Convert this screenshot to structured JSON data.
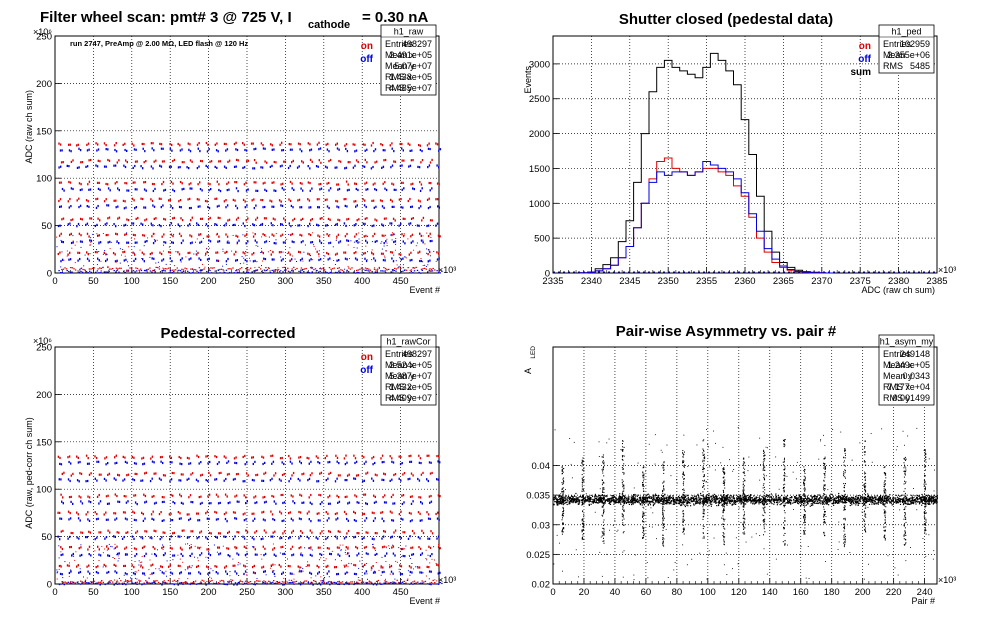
{
  "chart_data": [
    {
      "type": "scatter",
      "title": "Filter wheel scan: pmt#   3 @   725 V, I",
      "title_sub": "cathode",
      "title_suffix": "= 0.30 nA",
      "annotation": "run 2747, PreAmp @ 2.00 MΩ, LED flash @  120 Hz",
      "xlabel": "Event #",
      "ylabel": "ADC (raw ch sum)",
      "x_exponent": "×10³",
      "y_exponent": "×10⁶",
      "xlim": [
        0,
        500
      ],
      "ylim": [
        0,
        250
      ],
      "xticks": [
        0,
        50,
        100,
        150,
        200,
        250,
        300,
        350,
        400,
        450
      ],
      "yticks": [
        0,
        50,
        100,
        150,
        200,
        250
      ],
      "grid": true,
      "legend": [
        {
          "name": "on",
          "color": "#e00000"
        },
        {
          "name": "off",
          "color": "#0000e0"
        }
      ],
      "legend_position": "top-right",
      "stats": {
        "name": "h1_raw",
        "rows": [
          [
            "Entries",
            "498297"
          ],
          [
            "Mean x",
            "2.491e+05"
          ],
          [
            "Mean y",
            "5.07e+07"
          ],
          [
            "RMS x",
            "1.438e+05"
          ],
          [
            "RMS y",
            "4.485e+07"
          ]
        ]
      },
      "bands": [
        {
          "series": "on",
          "y": 137
        },
        {
          "series": "off",
          "y": 131
        },
        {
          "series": "on",
          "y": 119
        },
        {
          "series": "off",
          "y": 113
        },
        {
          "series": "on",
          "y": 96
        },
        {
          "series": "off",
          "y": 89
        },
        {
          "series": "on",
          "y": 78
        },
        {
          "series": "off",
          "y": 71
        },
        {
          "series": "on",
          "y": 58
        },
        {
          "series": "off",
          "y": 52
        },
        {
          "series": "on",
          "y": 41
        },
        {
          "series": "off",
          "y": 34
        },
        {
          "series": "on",
          "y": 22
        },
        {
          "series": "off",
          "y": 15
        },
        {
          "series": "on",
          "y": 5
        },
        {
          "series": "off",
          "y": 2
        }
      ]
    },
    {
      "type": "line",
      "title": "Shutter closed (pedestal data)",
      "xlabel": "ADC (raw ch sum)",
      "ylabel": "Events",
      "x_exponent": "×10³",
      "xlim": [
        2335,
        2385
      ],
      "ylim": [
        0,
        3400
      ],
      "xticks": [
        2335,
        2340,
        2345,
        2350,
        2355,
        2360,
        2365,
        2370,
        2375,
        2380,
        2385
      ],
      "yticks": [
        0,
        500,
        1000,
        1500,
        2000,
        2500,
        3000
      ],
      "grid": true,
      "legend": [
        {
          "name": "on",
          "color": "#e00000"
        },
        {
          "name": "off",
          "color": "#0000e0"
        },
        {
          "name": "sum",
          "color": "#000000"
        }
      ],
      "legend_position": "top-right",
      "stats": {
        "name": "h1_ped",
        "rows": [
          [
            "Entries",
            "102959"
          ],
          [
            "Mean",
            "2.355e+06"
          ],
          [
            "RMS",
            "5485"
          ]
        ]
      },
      "x": [
        2339,
        2340,
        2341,
        2342,
        2343,
        2344,
        2345,
        2346,
        2347,
        2348,
        2349,
        2350,
        2351,
        2352,
        2353,
        2354,
        2355,
        2356,
        2357,
        2358,
        2359,
        2360,
        2361,
        2362,
        2363,
        2364,
        2365,
        2366,
        2367,
        2368,
        2369,
        2370,
        2371
      ],
      "series": [
        {
          "name": "sum",
          "color": "#000000",
          "values": [
            5,
            15,
            60,
            120,
            220,
            450,
            750,
            1300,
            2000,
            2600,
            2950,
            3050,
            2950,
            2900,
            2850,
            2800,
            2950,
            3150,
            3050,
            2900,
            2700,
            2200,
            1700,
            1100,
            600,
            300,
            150,
            80,
            40,
            20,
            10,
            5,
            0
          ]
        },
        {
          "name": "on",
          "color": "#e00000",
          "values": [
            2,
            8,
            30,
            60,
            110,
            220,
            380,
            650,
            1000,
            1350,
            1600,
            1650,
            1500,
            1450,
            1400,
            1450,
            1500,
            1500,
            1450,
            1400,
            1250,
            1100,
            800,
            500,
            300,
            150,
            80,
            40,
            20,
            10,
            5,
            2,
            0
          ]
        },
        {
          "name": "off",
          "color": "#0000e0",
          "values": [
            2,
            8,
            30,
            60,
            110,
            220,
            380,
            650,
            1000,
            1300,
            1450,
            1400,
            1450,
            1450,
            1400,
            1450,
            1600,
            1550,
            1500,
            1450,
            1350,
            1150,
            850,
            600,
            350,
            200,
            100,
            50,
            20,
            10,
            5,
            2,
            0
          ]
        }
      ]
    },
    {
      "type": "scatter",
      "title": "Pedestal-corrected",
      "xlabel": "Event #",
      "ylabel": "ADC (raw, ped-corr ch sum)",
      "x_exponent": "×10³",
      "y_exponent": "×10⁶",
      "xlim": [
        0,
        500
      ],
      "ylim": [
        0,
        250
      ],
      "xticks": [
        0,
        50,
        100,
        150,
        200,
        250,
        300,
        350,
        400,
        450
      ],
      "yticks": [
        0,
        50,
        100,
        150,
        200,
        250
      ],
      "grid": true,
      "legend": [
        {
          "name": "on",
          "color": "#e00000"
        },
        {
          "name": "off",
          "color": "#0000e0"
        }
      ],
      "legend_position": "top-right",
      "stats": {
        "name": "h1_rawCor",
        "rows": [
          [
            "Entries",
            "498297"
          ],
          [
            "Mean x",
            "2.524e+05"
          ],
          [
            "Mean y",
            "5.387e+07"
          ],
          [
            "RMS x",
            "1.432e+05"
          ],
          [
            "RMS y",
            "4.409e+07"
          ]
        ]
      },
      "bands": [
        {
          "series": "on",
          "y": 135
        },
        {
          "series": "off",
          "y": 129
        },
        {
          "series": "on",
          "y": 117
        },
        {
          "series": "off",
          "y": 111
        },
        {
          "series": "on",
          "y": 94
        },
        {
          "series": "off",
          "y": 87
        },
        {
          "series": "on",
          "y": 76
        },
        {
          "series": "off",
          "y": 69
        },
        {
          "series": "on",
          "y": 56
        },
        {
          "series": "off",
          "y": 50
        },
        {
          "series": "on",
          "y": 39
        },
        {
          "series": "off",
          "y": 32
        },
        {
          "series": "on",
          "y": 20
        },
        {
          "series": "off",
          "y": 13
        },
        {
          "series": "on",
          "y": 3
        },
        {
          "series": "off",
          "y": 1
        }
      ]
    },
    {
      "type": "scatter",
      "title": "Pair-wise Asymmetry vs. pair #",
      "xlabel": "Pair #",
      "ylabel": "A",
      "ylabel_sub": "LED",
      "x_exponent": "×10³",
      "xlim": [
        0,
        248
      ],
      "ylim": [
        0.02,
        0.06
      ],
      "xticks": [
        0,
        20,
        40,
        60,
        80,
        100,
        120,
        140,
        160,
        180,
        200,
        220,
        240
      ],
      "yticks": [
        0.02,
        0.025,
        0.03,
        0.035,
        0.04
      ],
      "grid": true,
      "stats": {
        "name": "h1_asym_my",
        "rows": [
          [
            "Entries",
            "249148"
          ],
          [
            "Mean x",
            "1.249e+05"
          ],
          [
            "Mean y",
            "0.0343"
          ],
          [
            "RMS x",
            "7.177e+04"
          ],
          [
            "RMS y",
            "0.001499"
          ]
        ]
      },
      "band_center": 0.0343,
      "band_halfwidth": 0.0012,
      "spike_x": [
        6,
        19,
        32,
        45,
        58,
        71,
        84,
        97,
        110,
        123,
        136,
        149,
        162,
        175,
        188,
        201,
        214,
        227,
        240
      ]
    }
  ]
}
